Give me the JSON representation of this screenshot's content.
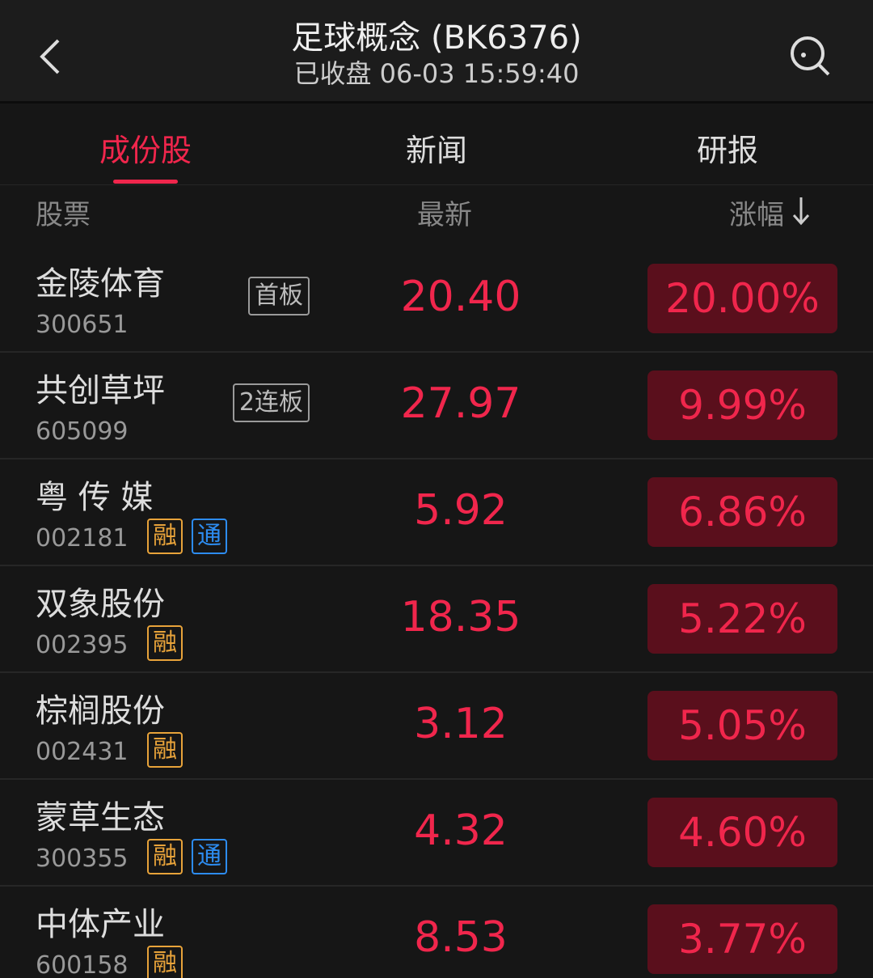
{
  "header": {
    "title": "足球概念 (BK6376)",
    "subtitle": "已收盘 06-03 15:59:40"
  },
  "tabs": [
    "成份股",
    "新闻",
    "研报"
  ],
  "columns": [
    "股票",
    "最新",
    "涨幅"
  ],
  "rows": [
    {
      "name": "金陵体育",
      "code": "300651",
      "badges": [
        {
          "label": "首板",
          "color": "#9a9a9a"
        }
      ],
      "price": "20.40",
      "change": "20.00%"
    },
    {
      "name": "共创草坪",
      "code": "605099",
      "badges": [
        {
          "label": "2连板",
          "color": "#9a9a9a"
        }
      ],
      "price": "27.97",
      "change": "9.99%"
    },
    {
      "name": "粤 传 媒",
      "code": "002181",
      "badges": [
        {
          "label": "融",
          "color": "#e8a33a"
        },
        {
          "label": "通",
          "color": "#2d8cf0"
        }
      ],
      "price": "5.92",
      "change": "6.86%"
    },
    {
      "name": "双象股份",
      "code": "002395",
      "badges": [
        {
          "label": "融",
          "color": "#e8a33a"
        }
      ],
      "price": "18.35",
      "change": "5.22%"
    },
    {
      "name": "棕榈股份",
      "code": "002431",
      "badges": [
        {
          "label": "融",
          "color": "#e8a33a"
        }
      ],
      "price": "3.12",
      "change": "5.05%"
    },
    {
      "name": "蒙草生态",
      "code": "300355",
      "badges": [
        {
          "label": "融",
          "color": "#e8a33a"
        },
        {
          "label": "通",
          "color": "#2d8cf0"
        }
      ],
      "price": "4.32",
      "change": "4.60%"
    },
    {
      "name": "中体产业",
      "code": "600158",
      "badges": [
        {
          "label": "融",
          "color": "#e8a33a"
        }
      ],
      "price": "8.53",
      "change": "3.77%"
    }
  ]
}
